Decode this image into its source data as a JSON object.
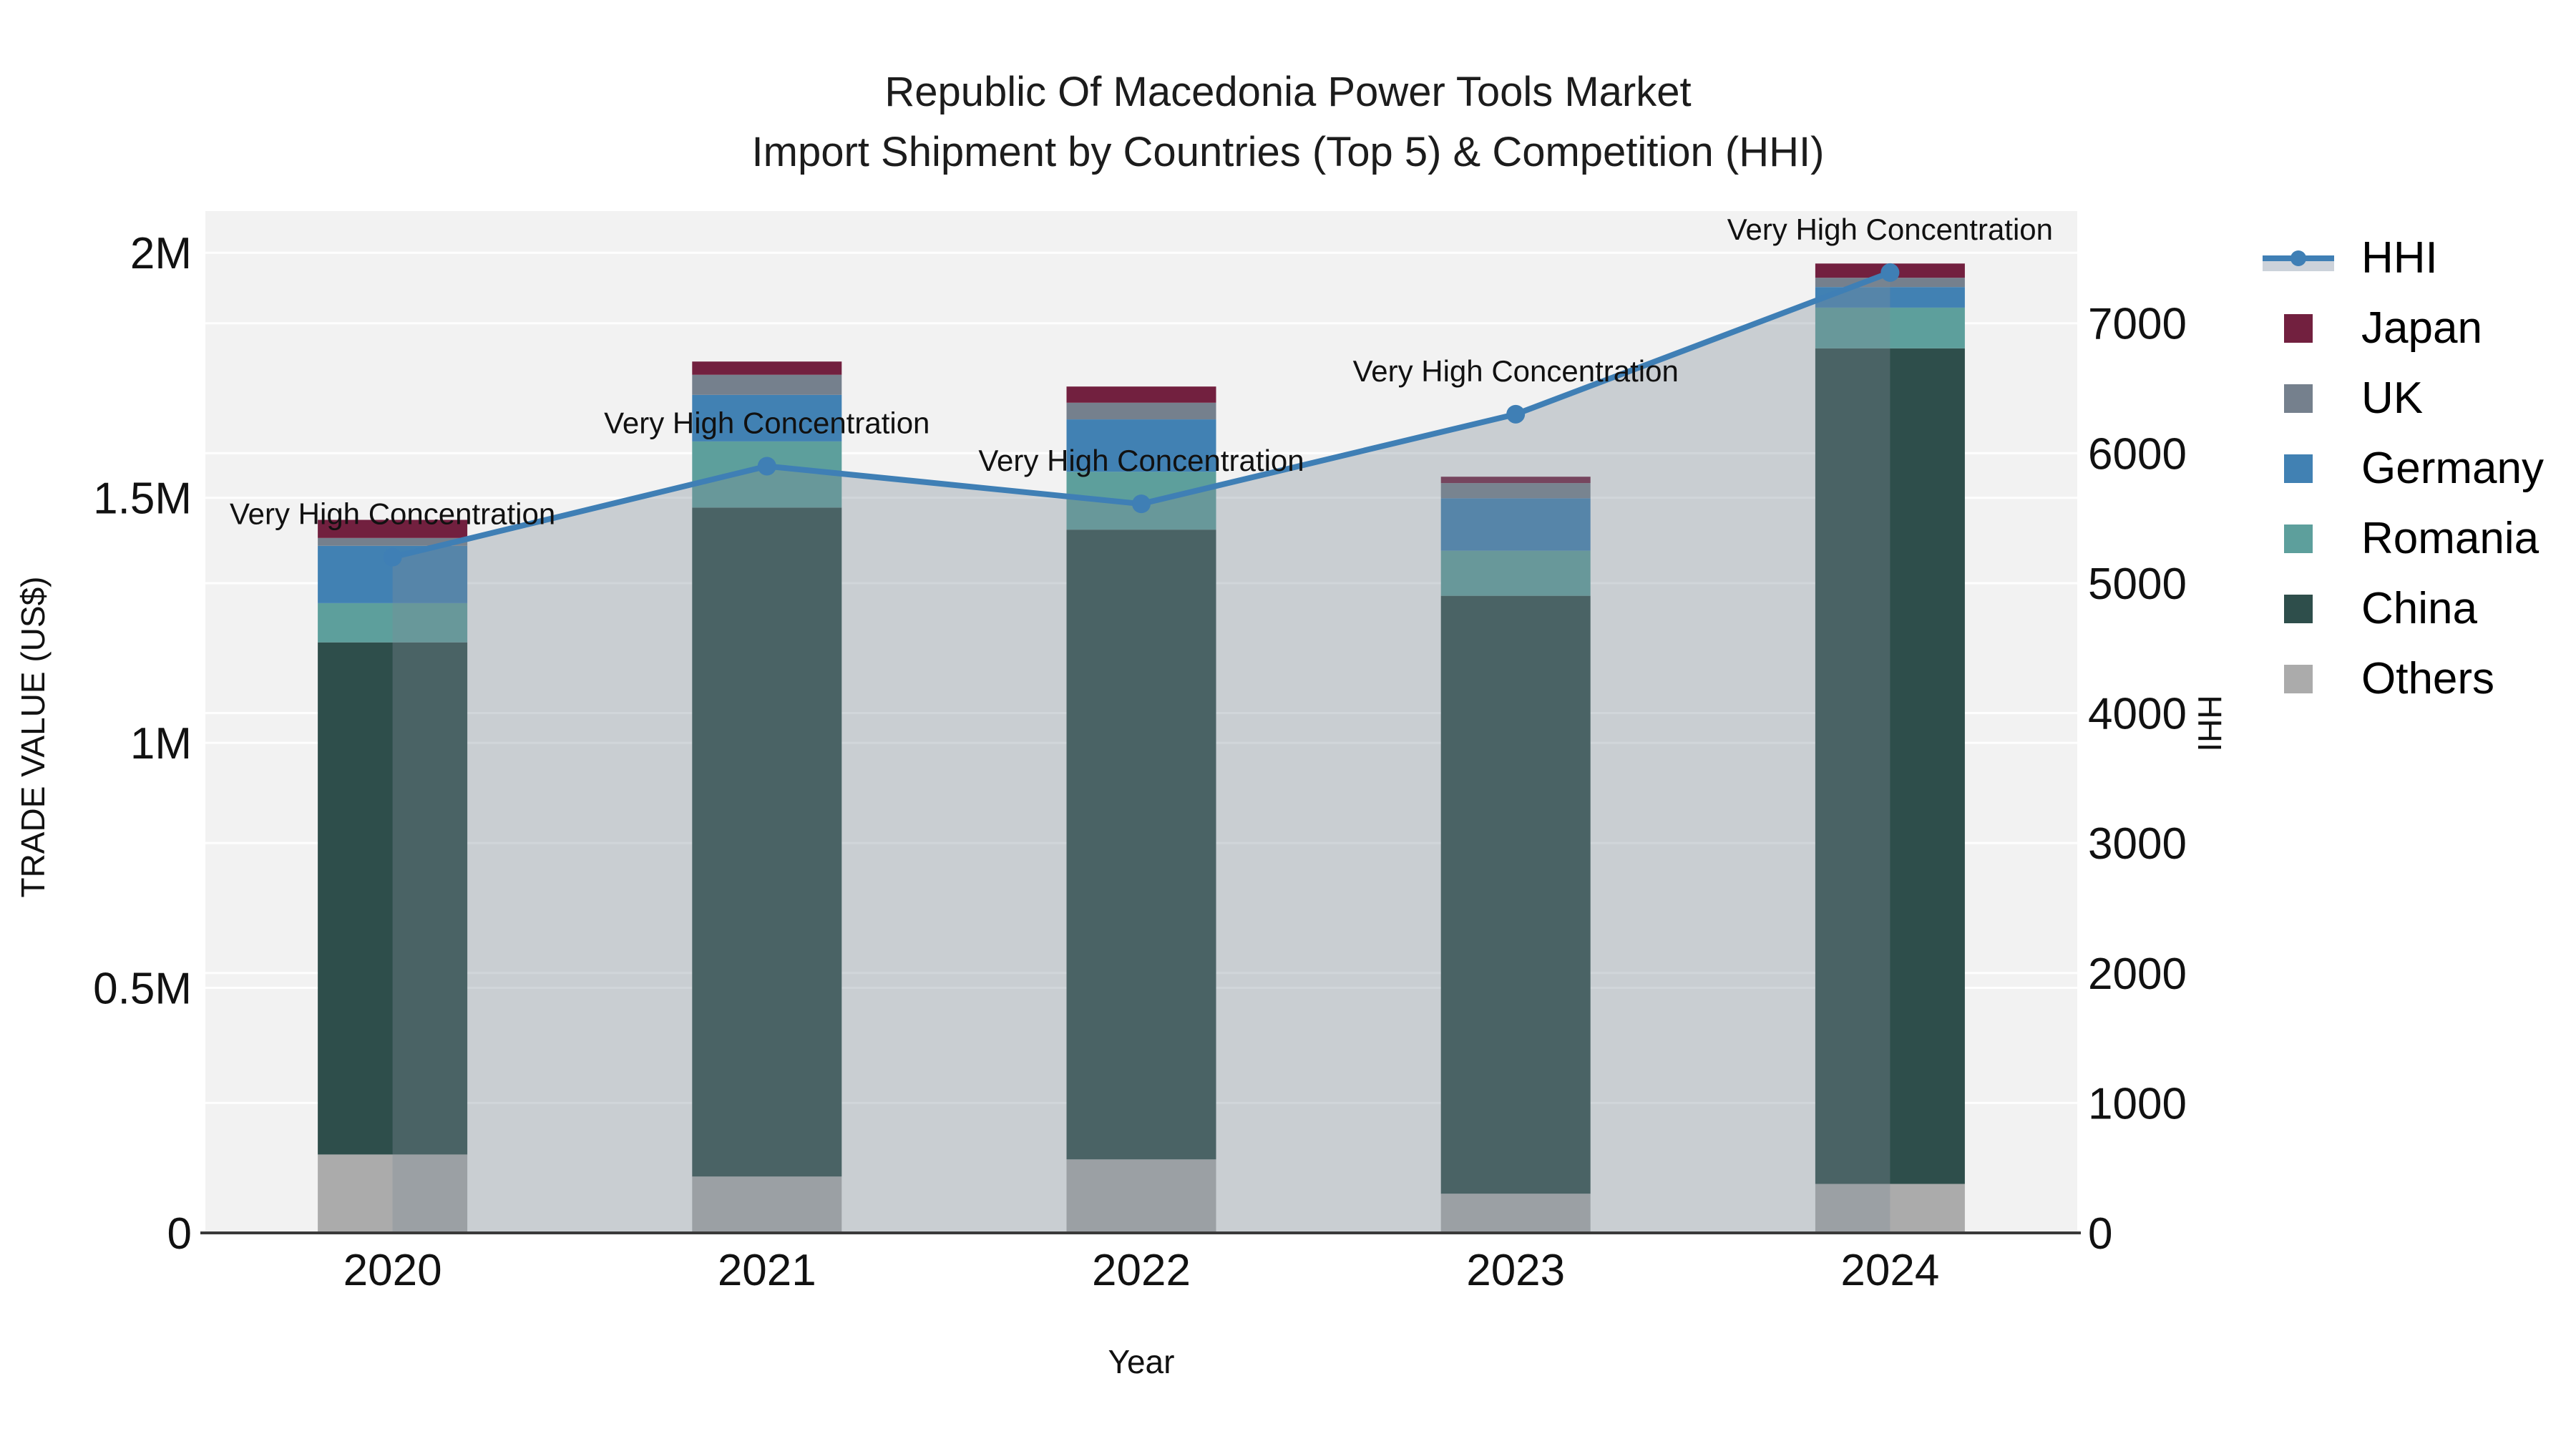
{
  "title": {
    "line1": "Republic Of Macedonia Power Tools Market",
    "line2": "Import Shipment by Countries (Top 5) & Competition (HHI)"
  },
  "axes": {
    "x": {
      "title": "Year",
      "tick_labels": [
        "2020",
        "2021",
        "2022",
        "2023",
        "2024"
      ]
    },
    "y_left": {
      "title": "TRADE VALUE (US$)",
      "range": [
        0,
        2085000
      ],
      "ticks": [
        {
          "v": 0,
          "label": "0"
        },
        {
          "v": 500000,
          "label": "0.5M"
        },
        {
          "v": 1000000,
          "label": "1M"
        },
        {
          "v": 1500000,
          "label": "1.5M"
        },
        {
          "v": 2000000,
          "label": "2M"
        }
      ]
    },
    "y_right": {
      "title": "HHI",
      "range": [
        0,
        7863
      ],
      "ticks": [
        {
          "v": 0,
          "label": "0"
        },
        {
          "v": 1000,
          "label": "1000"
        },
        {
          "v": 2000,
          "label": "2000"
        },
        {
          "v": 3000,
          "label": "3000"
        },
        {
          "v": 4000,
          "label": "4000"
        },
        {
          "v": 5000,
          "label": "5000"
        },
        {
          "v": 6000,
          "label": "6000"
        },
        {
          "v": 7000,
          "label": "7000"
        }
      ]
    }
  },
  "chart_data": {
    "type": "combo: stacked-bar + line-area (dual axis)",
    "title": "Republic Of Macedonia Power Tools Market — Import Shipment by Countries (Top 5) & Competition (HHI)",
    "xlabel": "Year",
    "ylabel_left": "TRADE VALUE (US$)",
    "ylabel_right": "HHI",
    "categories": [
      "2020",
      "2021",
      "2022",
      "2023",
      "2024"
    ],
    "bar_series_bottom_to_top": [
      {
        "name": "Others",
        "color": "#ababab",
        "values": [
          160000,
          115000,
          150000,
          80000,
          100000
        ]
      },
      {
        "name": "China",
        "color": "#2e4e4b",
        "values": [
          1045000,
          1365000,
          1285000,
          1220000,
          1705000
        ]
      },
      {
        "name": "Romania",
        "color": "#5d9f9c",
        "values": [
          80000,
          135000,
          118000,
          92000,
          83000
        ]
      },
      {
        "name": "Germany",
        "color": "#4181b3",
        "values": [
          117000,
          95000,
          107000,
          107000,
          42000
        ]
      },
      {
        "name": "UK",
        "color": "#75808d",
        "values": [
          16000,
          41000,
          34000,
          31000,
          19000
        ]
      },
      {
        "name": "Japan",
        "color": "#72203f",
        "values": [
          37000,
          27000,
          33000,
          13000,
          29000
        ]
      }
    ],
    "bar_totals": [
      1455000,
      1778000,
      1727000,
      1543000,
      1978000
    ],
    "line_series": {
      "name": "HHI",
      "axis": "right",
      "color": "#3f7fb5",
      "area_fill": "rgba(125,140,152,0.35)",
      "values": [
        5200,
        5900,
        5610,
        6300,
        7390
      ]
    },
    "annotations": [
      {
        "x": "2020",
        "text": "Very High Concentration"
      },
      {
        "x": "2021",
        "text": "Very High Concentration"
      },
      {
        "x": "2022",
        "text": "Very High Concentration"
      },
      {
        "x": "2023",
        "text": "Very High Concentration"
      },
      {
        "x": "2024",
        "text": "Very High Concentration"
      }
    ],
    "ylim_left": [
      0,
      2085000
    ],
    "ylim_right": [
      0,
      7863
    ],
    "grid": true,
    "legend_position": "right",
    "plot_background": "#f2f2f2"
  },
  "legend": {
    "items": [
      {
        "label": "HHI",
        "type": "line",
        "color": "#3f7fb5"
      },
      {
        "label": "Japan",
        "type": "swatch",
        "color": "#72203f"
      },
      {
        "label": "UK",
        "type": "swatch",
        "color": "#75808d"
      },
      {
        "label": "Germany",
        "type": "swatch",
        "color": "#4181b3"
      },
      {
        "label": "Romania",
        "type": "swatch",
        "color": "#5d9f9c"
      },
      {
        "label": "China",
        "type": "swatch",
        "color": "#2e4e4b"
      },
      {
        "label": "Others",
        "type": "swatch",
        "color": "#ababab"
      }
    ]
  },
  "colors": {
    "line": "#3f7fb5",
    "area_fill": "rgba(125,140,152,0.35)",
    "legend_area_swatch": "#ccd2da",
    "plot_bg": "#f2f2f2",
    "grid": "#ffffff",
    "axis_line": "#3a3a3a",
    "text": "#111111"
  }
}
